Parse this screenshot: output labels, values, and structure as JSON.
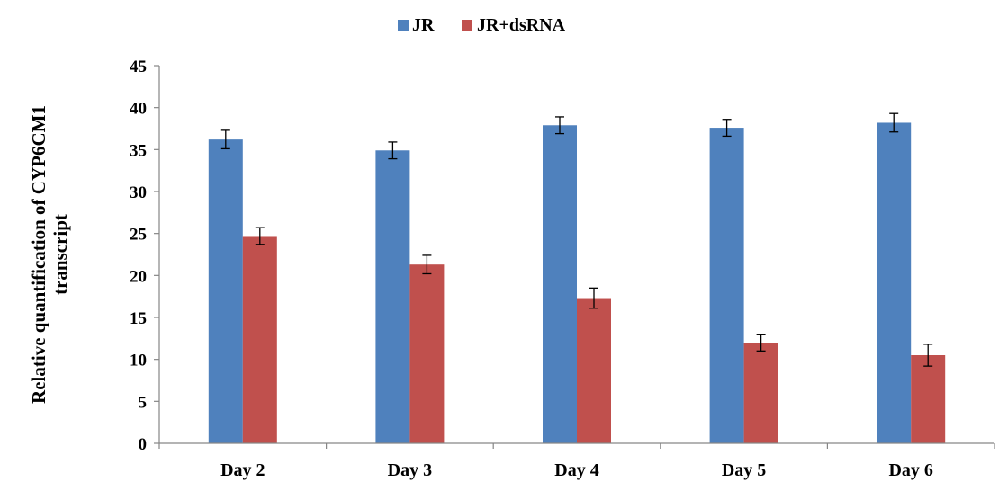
{
  "chart_data": {
    "type": "bar",
    "categories": [
      "Day 2",
      "Day 3",
      "Day 4",
      "Day 5",
      "Day 6"
    ],
    "series": [
      {
        "name": "JR",
        "values": [
          36.2,
          34.9,
          37.9,
          37.6,
          38.2
        ],
        "errors": [
          1.1,
          1.0,
          1.0,
          1.0,
          1.1
        ],
        "color": "#4F81BD"
      },
      {
        "name": "JR+dsRNA",
        "values": [
          24.7,
          21.3,
          17.3,
          12.0,
          10.5
        ],
        "errors": [
          1.0,
          1.1,
          1.2,
          1.0,
          1.3
        ],
        "color": "#C0504D"
      }
    ],
    "ylabel_line1": "Relative quantification of CYP6CM1",
    "ylabel_line2": "transcript",
    "ylim": [
      0,
      45
    ],
    "yticks": [
      0,
      5,
      10,
      15,
      20,
      25,
      30,
      35,
      40,
      45
    ],
    "grid": false,
    "legend_position": "top-center"
  }
}
